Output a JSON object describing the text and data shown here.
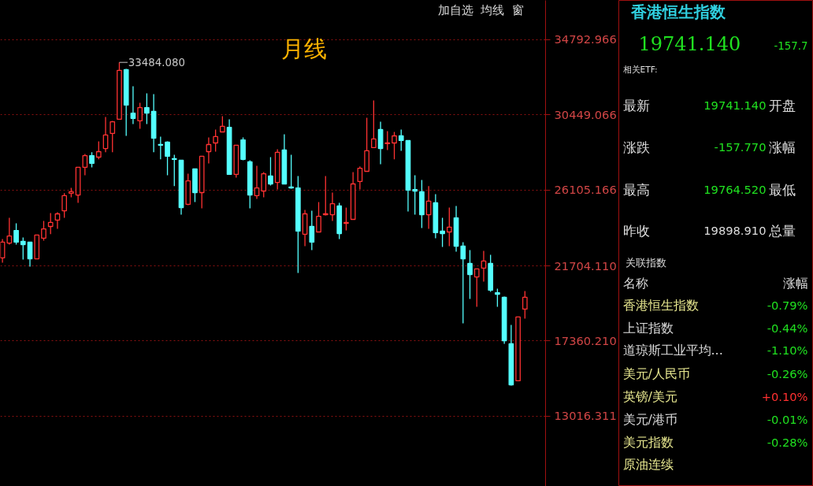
{
  "chart_data": [
    {
      "type": "candlestick",
      "title": "月线",
      "categories": [
        null,
        null,
        null,
        null,
        null,
        null,
        null,
        null,
        null,
        null,
        null,
        null,
        null,
        null,
        null,
        null,
        null,
        null,
        null,
        null,
        null,
        null,
        null,
        null,
        null,
        null,
        null,
        null,
        null,
        null,
        null,
        null,
        null,
        null,
        null,
        null,
        null,
        null,
        null,
        null,
        null,
        null,
        null,
        null,
        null,
        null,
        null,
        null,
        null,
        null,
        null,
        null,
        null,
        null,
        null,
        null,
        null,
        null,
        null,
        null,
        null,
        null,
        null,
        null,
        null,
        null,
        null,
        null,
        null,
        null,
        null,
        null,
        null,
        null,
        null,
        null,
        null
      ],
      "ohlc": [
        [
          22170,
          23260,
          21890,
          23080
        ],
        [
          23030,
          24490,
          22940,
          23440
        ],
        [
          23760,
          24170,
          22940,
          23080
        ],
        [
          23130,
          23350,
          22080,
          22940
        ],
        [
          23080,
          23080,
          21670,
          22120
        ],
        [
          22120,
          23490,
          22120,
          23490
        ],
        [
          23310,
          24310,
          23170,
          23850
        ],
        [
          23990,
          24770,
          23540,
          24220
        ],
        [
          24360,
          24810,
          23850,
          24720
        ],
        [
          24900,
          25910,
          24490,
          25770
        ],
        [
          25910,
          26220,
          25680,
          26000
        ],
        [
          25810,
          27410,
          25360,
          27410
        ],
        [
          27410,
          28180,
          26950,
          28090
        ],
        [
          28090,
          28280,
          27410,
          27640
        ],
        [
          28000,
          28910,
          27870,
          28320
        ],
        [
          28500,
          30330,
          28280,
          29280
        ],
        [
          29370,
          30100,
          28280,
          30050
        ],
        [
          30190,
          33484.08,
          30190,
          33020
        ],
        [
          33060,
          33110,
          29230,
          31010
        ],
        [
          30550,
          32100,
          29920,
          30240
        ],
        [
          30100,
          31150,
          29640,
          30870
        ],
        [
          30870,
          31690,
          29920,
          30550
        ],
        [
          30650,
          31650,
          28280,
          29100
        ],
        [
          28730,
          29190,
          27870,
          28690
        ],
        [
          28870,
          28910,
          26950,
          28050
        ],
        [
          27910,
          28140,
          26320,
          27870
        ],
        [
          27820,
          27820,
          24670,
          25080
        ],
        [
          25270,
          27040,
          25220,
          26630
        ],
        [
          27320,
          27320,
          25400,
          25950
        ],
        [
          25950,
          28050,
          25040,
          28050
        ],
        [
          28320,
          29140,
          27640,
          28730
        ],
        [
          28820,
          29600,
          28320,
          29190
        ],
        [
          29460,
          30370,
          29460,
          29780
        ],
        [
          29730,
          30190,
          27000,
          27000
        ],
        [
          27000,
          28690,
          26820,
          28690
        ],
        [
          29000,
          29140,
          27820,
          27870
        ],
        [
          27730,
          27820,
          25040,
          25810
        ],
        [
          25770,
          27500,
          25590,
          26220
        ],
        [
          26040,
          27140,
          25680,
          27040
        ],
        [
          26910,
          28000,
          26360,
          26450
        ],
        [
          26540,
          28460,
          26130,
          28280
        ],
        [
          28410,
          29320,
          26450,
          26450
        ],
        [
          26270,
          28140,
          26180,
          26220
        ],
        [
          26220,
          26910,
          21300,
          23720
        ],
        [
          23540,
          24950,
          22850,
          24720
        ],
        [
          23990,
          24900,
          22620,
          23080
        ],
        [
          23670,
          25400,
          23670,
          24580
        ],
        [
          24670,
          26910,
          24630,
          24720
        ],
        [
          24670,
          25950,
          24310,
          25310
        ],
        [
          25180,
          25360,
          23260,
          23580
        ],
        [
          24170,
          25080,
          23760,
          24220
        ],
        [
          24400,
          27140,
          24400,
          26450
        ],
        [
          26590,
          27460,
          26130,
          27360
        ],
        [
          27180,
          30280,
          27180,
          28370
        ],
        [
          28550,
          31280,
          28550,
          29050
        ],
        [
          29600,
          30050,
          27590,
          28500
        ],
        [
          28780,
          29510,
          28410,
          28820
        ],
        [
          28820,
          29460,
          27870,
          29230
        ],
        [
          29230,
          29600,
          28370,
          28960
        ],
        [
          28960,
          28960,
          24860,
          26090
        ],
        [
          26130,
          26950,
          24670,
          26040
        ],
        [
          26000,
          26680,
          23900,
          24670
        ],
        [
          24670,
          26320,
          23850,
          25450
        ],
        [
          25360,
          25860,
          23310,
          23630
        ],
        [
          23720,
          24490,
          22800,
          23580
        ],
        [
          23670,
          25080,
          22850,
          23950
        ],
        [
          24490,
          25180,
          22530,
          22850
        ],
        [
          22850,
          23080,
          18380,
          22120
        ],
        [
          21850,
          22620,
          19800,
          21210
        ],
        [
          21070,
          21530,
          19340,
          21530
        ],
        [
          21580,
          22580,
          20800,
          21990
        ],
        [
          21850,
          22350,
          20210,
          20300
        ],
        [
          20160,
          20390,
          19340,
          20070
        ],
        [
          19890,
          19930,
          17200,
          17380
        ],
        [
          17200,
          18290,
          14780,
          14830
        ],
        [
          15060,
          18750,
          15060,
          18750
        ],
        [
          19210,
          20250,
          18660,
          19890
        ]
      ],
      "ylim": [
        8950,
        37070
      ],
      "yticks": [
        34792.966,
        30449.066,
        26105.166,
        {
          "value": 21704.11,
          "label": "21704.110"
        },
        {
          "value": 17360.21,
          "label": "17360.210"
        },
        13016.311
      ],
      "grid": "y",
      "tick_labels": "y",
      "annotations": [
        "33484.080",
        "加自选",
        "均线",
        "窗"
      ]
    },
    {
      "type": "other",
      "title": "香港恒生指数",
      "annotations": [
        "19741.140",
        "-157.7",
        "相关ETF:",
        "最新",
        "19741.140",
        "开盘",
        "涨跌",
        "-157.770",
        "涨幅",
        "最高",
        "19764.520",
        "最低",
        "昨收",
        "19898.910",
        "总量",
        "关联指数",
        "名称",
        "涨幅",
        "香港恒生指数",
        "-0.79%",
        "上证指数",
        "-0.44%",
        "道琼斯工业平均...",
        "-1.10%",
        "美元/人民币",
        "-0.26%",
        "英镑/美元",
        "+0.10%",
        "美元/港币",
        "-0.01%",
        "美元指数",
        "-0.28%",
        "原油连续"
      ]
    }
  ]
}
